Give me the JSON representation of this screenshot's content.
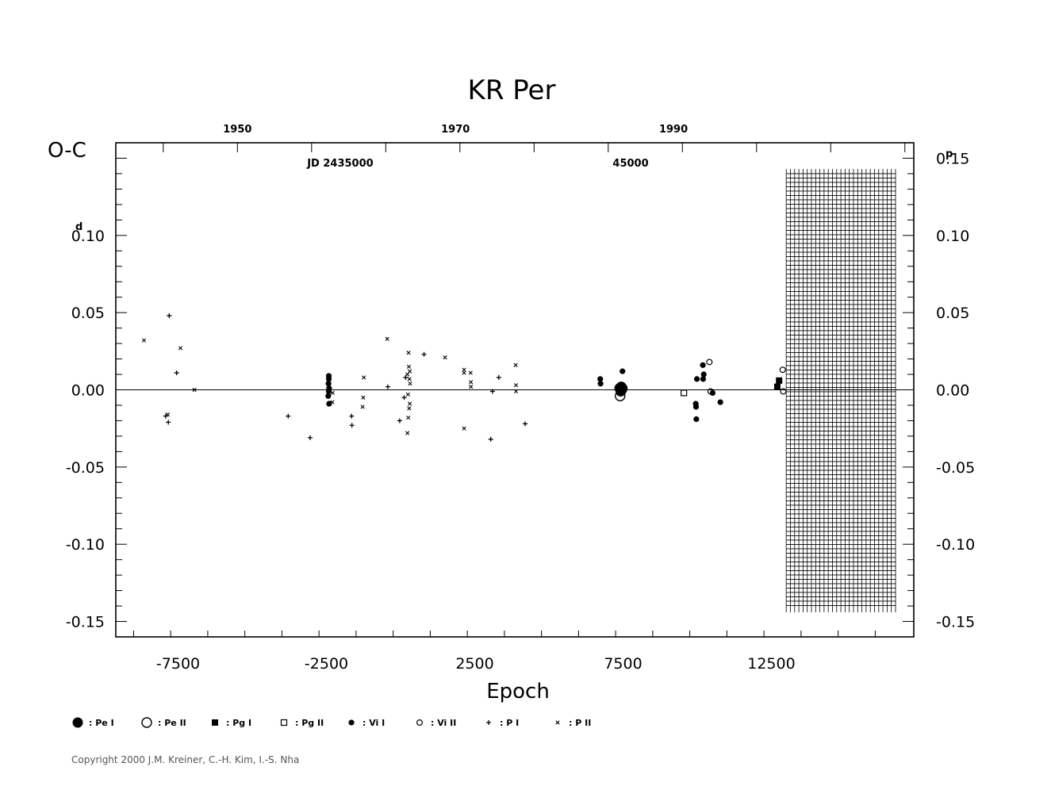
{
  "chart_data": {
    "type": "scatter",
    "title": "KR Per",
    "ylabel": "O-C",
    "ylabel_unit_left": "d",
    "ylabel_unit_right": "p",
    "xlabel": "Epoch",
    "xlim": [
      -9600,
      17300
    ],
    "ylim": [
      -0.16,
      0.16
    ],
    "x_ticks": [
      "-7500",
      "-2500",
      "2500",
      "7500",
      "12500"
    ],
    "x_tick_values": [
      -7500,
      -2500,
      2500,
      7500,
      12500
    ],
    "y_ticks_left": [
      "-0.15",
      "-0.10",
      "-0.05",
      "0.00",
      "0.05",
      "0.10"
    ],
    "y_ticks_right": [
      "-0.15",
      "-0.10",
      "-0.05",
      "0.00",
      "0.05",
      "0.10",
      "0.15"
    ],
    "y_tick_values": [
      -0.15,
      -0.1,
      -0.05,
      0.0,
      0.05,
      0.1,
      0.15
    ],
    "top_years": [
      "1950",
      "1970",
      "1990"
    ],
    "top_year_epochs": [
      -5500,
      1850,
      9200
    ],
    "jd_labels": [
      "JD 2435000",
      "45000"
    ],
    "jd_label_epochs": [
      -3150,
      7150
    ],
    "grid_region": {
      "x_start": 13000,
      "x_end": 16700,
      "y_low": -0.142,
      "y_high": 0.14
    },
    "zero_line": true,
    "series": [
      {
        "name": "Pe I",
        "symbol": "filled-circle-large",
        "points": [
          [
            7380,
            0.001
          ],
          [
            7420,
            -0.001
          ],
          [
            7440,
            0.002
          ],
          [
            7460,
            0.0
          ],
          [
            7480,
            0.001
          ]
        ]
      },
      {
        "name": "Pe II",
        "symbol": "open-circle-large",
        "points": [
          [
            7400,
            -0.004
          ]
        ]
      },
      {
        "name": "Pg I",
        "symbol": "filled-square",
        "points": [
          [
            12700,
            0.002
          ],
          [
            12760,
            0.006
          ]
        ]
      },
      {
        "name": "Pg II",
        "symbol": "open-square",
        "points": [
          [
            9550,
            -0.002
          ]
        ]
      },
      {
        "name": "Vi I",
        "symbol": "filled-circle",
        "points": [
          [
            -2420,
            0.009
          ],
          [
            -2420,
            0.007
          ],
          [
            -2430,
            0.004
          ],
          [
            -2410,
            0.001
          ],
          [
            -2420,
            -0.001
          ],
          [
            -2440,
            -0.004
          ],
          [
            -2410,
            -0.009
          ],
          [
            6730,
            0.007
          ],
          [
            6740,
            0.004
          ],
          [
            7480,
            0.012
          ],
          [
            9950,
            -0.009
          ],
          [
            9960,
            -0.011
          ],
          [
            9970,
            -0.019
          ],
          [
            9990,
            0.007
          ],
          [
            10190,
            0.016
          ],
          [
            10220,
            0.01
          ],
          [
            10200,
            0.007
          ],
          [
            10520,
            -0.002
          ],
          [
            10780,
            -0.008
          ]
        ]
      },
      {
        "name": "Vi II",
        "symbol": "open-circle",
        "points": [
          [
            10410,
            0.018
          ],
          [
            10450,
            -0.001
          ],
          [
            12880,
            0.013
          ],
          [
            12900,
            -0.001
          ]
        ]
      },
      {
        "name": "P I",
        "symbol": "plus",
        "points": [
          [
            -7800,
            0.048
          ],
          [
            -7550,
            0.011
          ],
          [
            -7920,
            -0.017
          ],
          [
            -7830,
            -0.021
          ],
          [
            -3790,
            -0.017
          ],
          [
            -3050,
            -0.031
          ],
          [
            -1650,
            -0.017
          ],
          [
            -1640,
            -0.023
          ],
          [
            -430,
            0.002
          ],
          [
            -30,
            -0.02
          ],
          [
            120,
            -0.005
          ],
          [
            170,
            0.008
          ],
          [
            790,
            0.023
          ],
          [
            3100,
            -0.001
          ],
          [
            3310,
            0.008
          ],
          [
            3040,
            -0.032
          ],
          [
            4200,
            -0.022
          ]
        ]
      },
      {
        "name": "P II",
        "symbol": "cross",
        "points": [
          [
            -8650,
            0.032
          ],
          [
            -7420,
            0.027
          ],
          [
            -6950,
            0.0
          ],
          [
            -7850,
            -0.016
          ],
          [
            -2290,
            -0.002
          ],
          [
            -2300,
            -0.008
          ],
          [
            -1240,
            0.008
          ],
          [
            -1260,
            -0.005
          ],
          [
            -1280,
            -0.011
          ],
          [
            -450,
            0.033
          ],
          [
            270,
            0.024
          ],
          [
            280,
            0.015
          ],
          [
            310,
            0.012
          ],
          [
            230,
            0.01
          ],
          [
            300,
            0.007
          ],
          [
            320,
            0.004
          ],
          [
            250,
            -0.003
          ],
          [
            310,
            -0.009
          ],
          [
            290,
            -0.012
          ],
          [
            260,
            -0.018
          ],
          [
            230,
            -0.028
          ],
          [
            1500,
            0.021
          ],
          [
            2140,
            0.013
          ],
          [
            2140,
            0.011
          ],
          [
            2360,
            0.011
          ],
          [
            2370,
            0.005
          ],
          [
            2370,
            0.002
          ],
          [
            2140,
            -0.025
          ],
          [
            3880,
            0.016
          ],
          [
            3890,
            0.003
          ],
          [
            3890,
            -0.001
          ]
        ]
      }
    ],
    "legend": [
      {
        "symbol": "filled-circle-large",
        "label": ": Pe I"
      },
      {
        "symbol": "open-circle-large",
        "label": ": Pe II"
      },
      {
        "symbol": "filled-square",
        "label": ": Pg I"
      },
      {
        "symbol": "open-square",
        "label": ": Pg II"
      },
      {
        "symbol": "filled-circle",
        "label": ": Vi I"
      },
      {
        "symbol": "open-circle",
        "label": ": Vi II"
      },
      {
        "symbol": "plus",
        "label": ": P I"
      },
      {
        "symbol": "cross",
        "label": ": P II"
      }
    ],
    "legend_placement": "bottom",
    "copyright": "Copyright 2000 J.M. Kreiner, C.-H. Kim, I.-S. Nha"
  }
}
